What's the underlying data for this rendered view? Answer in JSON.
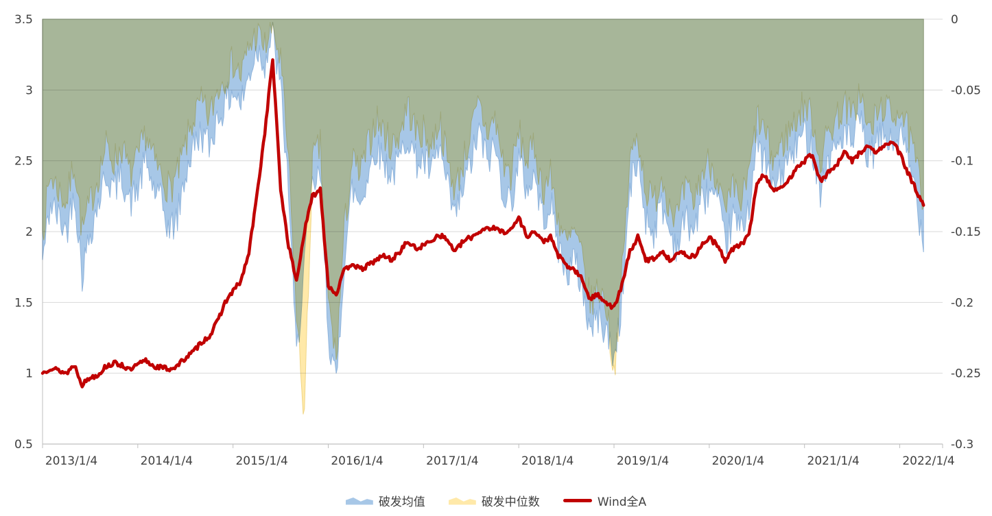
{
  "chart_data": {
    "type": "area+line",
    "title": "",
    "x_tick_labels": [
      "2013/1/4",
      "2014/1/4",
      "2015/1/4",
      "2016/1/4",
      "2017/1/4",
      "2018/1/4",
      "2019/1/4",
      "2020/1/4",
      "2021/1/4",
      "2022/1/4"
    ],
    "x_domain": {
      "start": 2013.0,
      "end": 2022.45
    },
    "left_axis": {
      "min": 0.5,
      "max": 3.5,
      "ticks": [
        3.5,
        3,
        2.5,
        2,
        1.5,
        1,
        0.5
      ],
      "tick_labels": [
        "3.5",
        "3",
        "2.5",
        "2",
        "1.5",
        "1",
        "0.5"
      ]
    },
    "right_axis": {
      "min": -0.3,
      "max": 0,
      "ticks": [
        0,
        -0.05,
        -0.1,
        -0.15,
        -0.2,
        -0.25,
        -0.3
      ],
      "tick_labels": [
        "0",
        "-0.05",
        "-0.1",
        "-0.15",
        "-0.2",
        "-0.25",
        "-0.3"
      ]
    },
    "grid_color": "#d9d9d9",
    "axis_color": "#bfbfbf",
    "legend_position": "bottom-center",
    "start_month": "2013-01",
    "points_per_month": 6,
    "series": [
      {
        "name": "破发均值",
        "type": "area",
        "axis": "right",
        "color": "#A7C7E7",
        "edge_color": "#8FB4DC",
        "noise": 0.013,
        "seed": 42,
        "monthly_values": [
          -0.17,
          -0.13,
          -0.14,
          -0.15,
          -0.12,
          -0.18,
          -0.15,
          -0.13,
          -0.11,
          -0.12,
          -0.11,
          -0.13,
          -0.12,
          -0.1,
          -0.12,
          -0.13,
          -0.15,
          -0.14,
          -0.11,
          -0.09,
          -0.08,
          -0.09,
          -0.07,
          -0.06,
          -0.05,
          -0.06,
          -0.04,
          -0.02,
          -0.03,
          -0.01,
          -0.05,
          -0.12,
          -0.24,
          -0.17,
          -0.12,
          -0.11,
          -0.22,
          -0.26,
          -0.17,
          -0.12,
          -0.13,
          -0.11,
          -0.09,
          -0.1,
          -0.11,
          -0.1,
          -0.08,
          -0.1,
          -0.1,
          -0.11,
          -0.09,
          -0.12,
          -0.14,
          -0.12,
          -0.1,
          -0.08,
          -0.1,
          -0.09,
          -0.12,
          -0.13,
          -0.1,
          -0.12,
          -0.11,
          -0.14,
          -0.13,
          -0.16,
          -0.18,
          -0.17,
          -0.19,
          -0.22,
          -0.21,
          -0.22,
          -0.24,
          -0.2,
          -0.12,
          -0.1,
          -0.14,
          -0.15,
          -0.13,
          -0.15,
          -0.16,
          -0.14,
          -0.15,
          -0.13,
          -0.12,
          -0.13,
          -0.16,
          -0.14,
          -0.15,
          -0.13,
          -0.09,
          -0.1,
          -0.12,
          -0.11,
          -0.1,
          -0.09,
          -0.08,
          -0.09,
          -0.12,
          -0.1,
          -0.09,
          -0.08,
          -0.09,
          -0.07,
          -0.1,
          -0.09,
          -0.08,
          -0.09,
          -0.08,
          -0.1,
          -0.12,
          -0.16
        ]
      },
      {
        "name": "破发中位数",
        "type": "area",
        "axis": "right",
        "color": "#FFE9A9",
        "edge_color": "#F0D687",
        "noise": 0.013,
        "seed": 7,
        "monthly_values": [
          -0.15,
          -0.11,
          -0.12,
          -0.13,
          -0.1,
          -0.15,
          -0.13,
          -0.11,
          -0.09,
          -0.1,
          -0.09,
          -0.11,
          -0.1,
          -0.08,
          -0.1,
          -0.11,
          -0.12,
          -0.11,
          -0.09,
          -0.07,
          -0.06,
          -0.07,
          -0.05,
          -0.04,
          -0.03,
          -0.04,
          -0.02,
          -0.01,
          -0.02,
          -0.005,
          -0.03,
          -0.1,
          -0.21,
          -0.28,
          -0.1,
          -0.09,
          -0.2,
          -0.24,
          -0.15,
          -0.1,
          -0.11,
          -0.09,
          -0.07,
          -0.08,
          -0.09,
          -0.08,
          -0.06,
          -0.08,
          -0.08,
          -0.09,
          -0.07,
          -0.1,
          -0.12,
          -0.1,
          -0.08,
          -0.06,
          -0.08,
          -0.07,
          -0.1,
          -0.11,
          -0.08,
          -0.1,
          -0.09,
          -0.12,
          -0.11,
          -0.14,
          -0.16,
          -0.15,
          -0.17,
          -0.2,
          -0.19,
          -0.2,
          -0.25,
          -0.18,
          -0.1,
          -0.08,
          -0.12,
          -0.13,
          -0.11,
          -0.13,
          -0.14,
          -0.12,
          -0.13,
          -0.11,
          -0.1,
          -0.11,
          -0.14,
          -0.12,
          -0.13,
          -0.11,
          -0.07,
          -0.08,
          -0.1,
          -0.09,
          -0.08,
          -0.07,
          -0.06,
          -0.07,
          -0.1,
          -0.08,
          -0.07,
          -0.06,
          -0.07,
          -0.05,
          -0.08,
          -0.07,
          -0.06,
          -0.07,
          -0.06,
          -0.08,
          -0.1,
          -0.13
        ]
      },
      {
        "name": "Wind全A",
        "type": "line",
        "axis": "left",
        "color": "#C00000",
        "width": 4.5,
        "noise": 0.018,
        "seed": 13,
        "monthly_values": [
          1.0,
          1.04,
          1.02,
          1.0,
          1.06,
          0.92,
          0.97,
          0.99,
          1.05,
          1.07,
          1.06,
          1.02,
          1.06,
          1.09,
          1.05,
          1.04,
          1.03,
          1.05,
          1.11,
          1.15,
          1.22,
          1.26,
          1.36,
          1.5,
          1.58,
          1.65,
          1.85,
          2.25,
          2.7,
          3.22,
          2.3,
          1.9,
          1.65,
          2.0,
          2.25,
          2.3,
          1.62,
          1.56,
          1.72,
          1.78,
          1.73,
          1.76,
          1.8,
          1.83,
          1.8,
          1.86,
          1.93,
          1.88,
          1.9,
          1.94,
          1.98,
          1.94,
          1.86,
          1.93,
          1.96,
          2.0,
          2.03,
          2.02,
          2.0,
          2.01,
          2.1,
          1.97,
          2.0,
          1.93,
          1.96,
          1.83,
          1.76,
          1.73,
          1.66,
          1.52,
          1.56,
          1.5,
          1.46,
          1.62,
          1.86,
          1.96,
          1.8,
          1.81,
          1.86,
          1.8,
          1.85,
          1.84,
          1.82,
          1.9,
          1.96,
          1.9,
          1.8,
          1.88,
          1.91,
          1.97,
          2.35,
          2.4,
          2.3,
          2.3,
          2.36,
          2.46,
          2.5,
          2.55,
          2.35,
          2.42,
          2.46,
          2.56,
          2.5,
          2.56,
          2.6,
          2.56,
          2.6,
          2.64,
          2.55,
          2.42,
          2.3,
          2.18
        ]
      }
    ]
  }
}
